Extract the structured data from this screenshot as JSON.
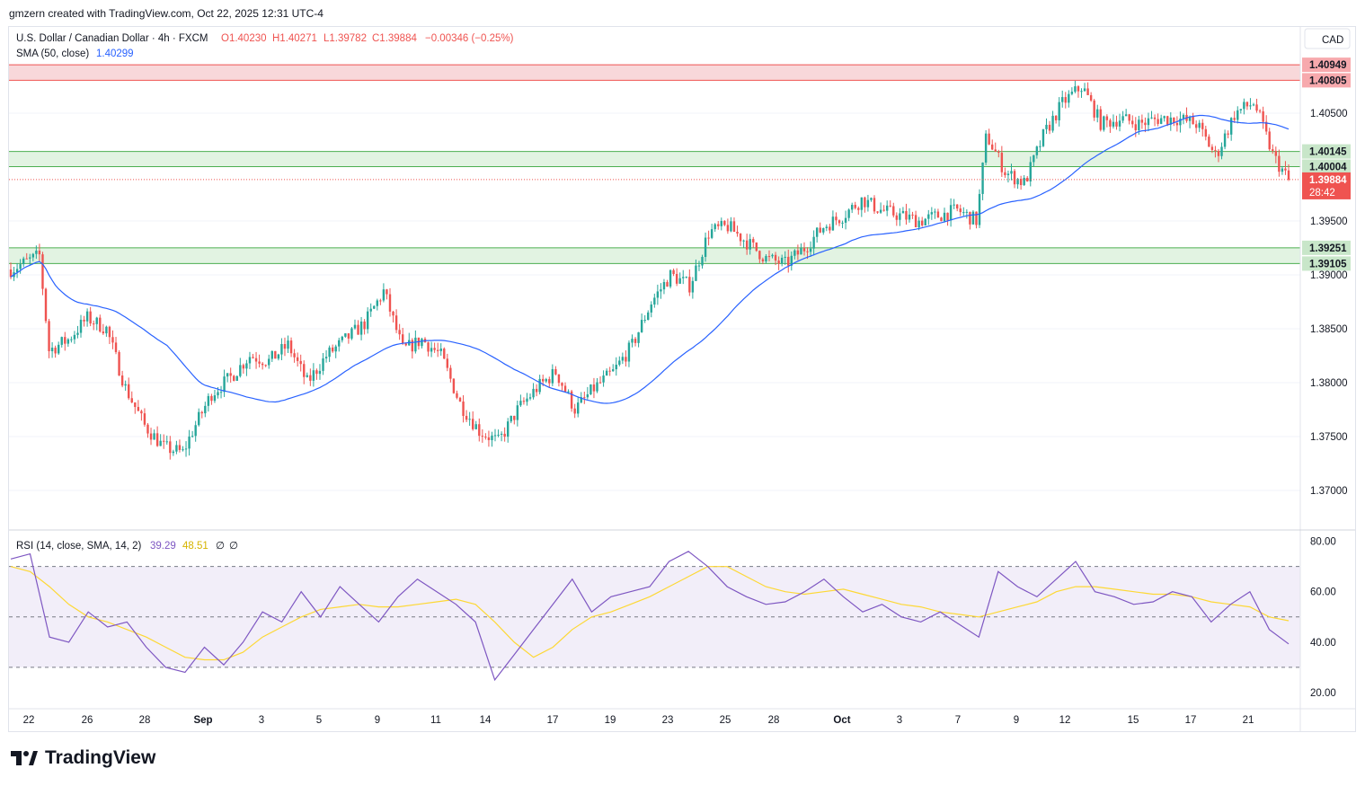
{
  "header": {
    "attribution": "gmzern created with TradingView.com, Oct 22, 2025 12:31 UTC-4"
  },
  "legend": {
    "symbol": "U.S. Dollar / Canadian Dollar · 4h · FXCM",
    "open": "O1.40230",
    "high": "H1.40271",
    "low": "L1.39782",
    "close": "C1.39884",
    "change": "−0.00346 (−0.25%)",
    "sma_label": "SMA (50, close)",
    "sma_value": "1.40299",
    "rsi_label": "RSI (14, close, SMA, 14, 2)",
    "rsi_value": "39.29",
    "rsi_sma_value": "48.51",
    "rsi_extra1": "∅",
    "rsi_extra2": "∅"
  },
  "currency_button": "CAD",
  "colors": {
    "up": "#26a69a",
    "down": "#ef5350",
    "sma": "#2962ff",
    "rsi": "#7e57c2",
    "rsi_sma": "#fdd835",
    "resistance_zone": "#f7d4d6",
    "support_zone": "#dff2df"
  },
  "brand": "TradingView",
  "chart_data": {
    "type": "candlestick",
    "symbol": "USDCAD",
    "timeframe": "4h",
    "price_axis": {
      "range": [
        1.367,
        1.4105
      ],
      "ticks": [
        "1.40500",
        "1.39500",
        "1.39000",
        "1.38500",
        "1.38000",
        "1.37500",
        "1.37000"
      ]
    },
    "zones": [
      {
        "type": "resistance",
        "from": 1.40805,
        "to": 1.40949,
        "labels": [
          "1.40949",
          "1.40805"
        ]
      },
      {
        "type": "support",
        "from": 1.40004,
        "to": 1.40145,
        "labels": [
          "1.40145",
          "1.40004"
        ]
      },
      {
        "type": "support",
        "from": 1.39105,
        "to": 1.39251,
        "labels": [
          "1.39251",
          "1.39105"
        ]
      }
    ],
    "last_price": {
      "value": 1.39884,
      "label": "1.39884",
      "countdown": "28:42"
    },
    "x_axis_labels": [
      "22",
      "26",
      "28",
      "Sep",
      "3",
      "5",
      "9",
      "11",
      "14",
      "17",
      "19",
      "23",
      "25",
      "28",
      "Oct",
      "3",
      "7",
      "9",
      "12",
      "15",
      "17",
      "21"
    ],
    "price_path": [
      [
        0,
        1.3905
      ],
      [
        1.5,
        1.3918
      ],
      [
        2,
        1.383
      ],
      [
        3,
        1.384
      ],
      [
        4,
        1.386
      ],
      [
        5,
        1.385
      ],
      [
        6,
        1.3795
      ],
      [
        7,
        1.376
      ],
      [
        8,
        1.374
      ],
      [
        9,
        1.3735
      ],
      [
        9.5,
        1.3755
      ],
      [
        10.5,
        1.379
      ],
      [
        11.5,
        1.3805
      ],
      [
        12.5,
        1.3825
      ],
      [
        13.5,
        1.382
      ],
      [
        14.5,
        1.3835
      ],
      [
        15.5,
        1.38
      ],
      [
        16.5,
        1.3825
      ],
      [
        17.5,
        1.384
      ],
      [
        18.5,
        1.3855
      ],
      [
        19.5,
        1.3885
      ],
      [
        20.5,
        1.383
      ],
      [
        21.5,
        1.384
      ],
      [
        22.5,
        1.3825
      ],
      [
        23.5,
        1.378
      ],
      [
        24.5,
        1.3755
      ],
      [
        25.5,
        1.3745
      ],
      [
        26.5,
        1.3775
      ],
      [
        27.5,
        1.3795
      ],
      [
        28.5,
        1.381
      ],
      [
        29.5,
        1.3775
      ],
      [
        30.5,
        1.3795
      ],
      [
        31.5,
        1.381
      ],
      [
        32.5,
        1.3835
      ],
      [
        33.5,
        1.3875
      ],
      [
        34.5,
        1.39
      ],
      [
        35.5,
        1.389
      ],
      [
        36.5,
        1.394
      ],
      [
        37.5,
        1.3945
      ],
      [
        38.5,
        1.393
      ],
      [
        39.5,
        1.3915
      ],
      [
        40.5,
        1.391
      ],
      [
        41.5,
        1.3925
      ],
      [
        42.5,
        1.3945
      ],
      [
        43.5,
        1.3955
      ],
      [
        44.5,
        1.397
      ],
      [
        45.5,
        1.396
      ],
      [
        46.5,
        1.3955
      ],
      [
        47.5,
        1.395
      ],
      [
        48.5,
        1.3955
      ],
      [
        49.5,
        1.396
      ],
      [
        50.5,
        1.395
      ],
      [
        51,
        1.403
      ],
      [
        52,
        1.3995
      ],
      [
        53,
        1.3985
      ],
      [
        54,
        1.403
      ],
      [
        55,
        1.406
      ],
      [
        56,
        1.4075
      ],
      [
        57,
        1.404
      ],
      [
        58,
        1.4045
      ],
      [
        59,
        1.404
      ],
      [
        60,
        1.4045
      ],
      [
        61,
        1.4045
      ],
      [
        62,
        1.404
      ],
      [
        63,
        1.401
      ],
      [
        64,
        1.405
      ],
      [
        65,
        1.406
      ],
      [
        66,
        1.401
      ],
      [
        66.8,
        1.3988
      ]
    ],
    "rsi": {
      "range": [
        15,
        82
      ],
      "levels": [
        30,
        50,
        70
      ],
      "ticks": [
        "80.00",
        "60.00",
        "40.00",
        "20.00"
      ],
      "values": [
        73,
        75,
        42,
        40,
        52,
        46,
        48,
        38,
        30,
        28,
        38,
        31,
        40,
        52,
        48,
        60,
        50,
        62,
        55,
        48,
        58,
        65,
        60,
        55,
        48,
        25,
        35,
        45,
        55,
        65,
        52,
        58,
        60,
        62,
        72,
        76,
        70,
        62,
        58,
        55,
        56,
        60,
        65,
        58,
        52,
        55,
        50,
        48,
        52,
        47,
        42,
        68,
        62,
        58,
        65,
        72,
        60,
        58,
        55,
        56,
        60,
        58,
        48,
        55,
        60,
        45,
        39.29
      ],
      "sma_values": [
        70,
        68,
        62,
        55,
        50,
        48,
        45,
        42,
        38,
        34,
        33,
        33,
        36,
        42,
        46,
        50,
        53,
        54,
        55,
        54,
        54,
        55,
        56,
        57,
        55,
        48,
        40,
        34,
        38,
        45,
        50,
        52,
        55,
        58,
        62,
        66,
        70,
        70,
        66,
        62,
        60,
        59,
        60,
        61,
        59,
        57,
        55,
        54,
        52,
        51,
        50,
        52,
        54,
        56,
        60,
        62,
        62,
        61,
        60,
        59,
        59,
        58,
        56,
        55,
        54,
        50,
        48.51
      ]
    }
  }
}
